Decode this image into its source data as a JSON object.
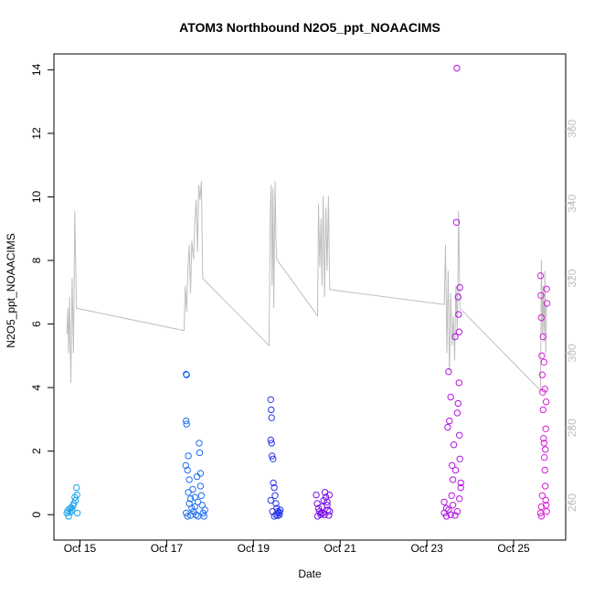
{
  "chart_data": {
    "type": "scatter",
    "title": "ATOM3 Northbound N2O5_ppt_NOAACIMS",
    "xlabel": "Date",
    "ylabel": "N2O5_ppt_NOAACIMS",
    "x_ticks": [
      "Oct 15",
      "Oct 17",
      "Oct 19",
      "Oct 21",
      "Oct 23",
      "Oct 25"
    ],
    "x_tick_days": [
      15,
      17,
      19,
      21,
      23,
      25
    ],
    "xlim": [
      14.4,
      26.2
    ],
    "y_ticks": [
      0,
      2,
      4,
      6,
      8,
      10,
      12,
      14
    ],
    "ylim": [
      -0.8,
      14.5
    ],
    "y2_ticks": [
      260,
      280,
      300,
      320,
      340,
      360
    ],
    "y2lim": [
      250,
      380
    ],
    "series": [
      {
        "color": "#1ca3ec",
        "points": [
          [
            14.7,
            0.05
          ],
          [
            14.72,
            0.12
          ],
          [
            14.74,
            -0.05
          ],
          [
            14.76,
            0.18
          ],
          [
            14.78,
            0.08
          ],
          [
            14.8,
            0.22
          ],
          [
            14.82,
            0.15
          ],
          [
            14.84,
            0.28
          ],
          [
            14.86,
            0.35
          ],
          [
            14.88,
            0.55
          ],
          [
            14.9,
            0.45
          ],
          [
            14.92,
            0.85
          ],
          [
            14.93,
            0.62
          ],
          [
            14.94,
            0.05
          ]
        ]
      },
      {
        "color": "#1f6ff0",
        "points": [
          [
            17.45,
            4.42
          ],
          [
            17.46,
            4.4
          ],
          [
            17.45,
            2.95
          ],
          [
            17.46,
            2.85
          ],
          [
            17.44,
            1.55
          ],
          [
            17.48,
            1.4
          ],
          [
            17.5,
            1.85
          ],
          [
            17.52,
            1.1
          ],
          [
            17.5,
            0.7
          ],
          [
            17.52,
            0.35
          ],
          [
            17.55,
            0.5
          ],
          [
            17.58,
            0.2
          ],
          [
            17.6,
            0.8
          ],
          [
            17.62,
            0.1
          ],
          [
            17.65,
            0.55
          ],
          [
            17.68,
            0.0
          ],
          [
            17.7,
            1.2
          ],
          [
            17.72,
            0.4
          ],
          [
            17.75,
            2.25
          ],
          [
            17.76,
            1.95
          ],
          [
            17.78,
            1.3
          ],
          [
            17.78,
            0.9
          ],
          [
            17.8,
            0.6
          ],
          [
            17.82,
            0.3
          ],
          [
            17.84,
            0.05
          ],
          [
            17.86,
            -0.05
          ],
          [
            17.88,
            0.15
          ],
          [
            17.45,
            0.05
          ],
          [
            17.48,
            -0.05
          ],
          [
            17.55,
            -0.02
          ],
          [
            17.65,
            0.25
          ],
          [
            17.72,
            -0.05
          ]
        ]
      },
      {
        "color": "#2a38e8",
        "points": [
          [
            19.4,
            3.62
          ],
          [
            19.41,
            3.3
          ],
          [
            19.42,
            3.05
          ],
          [
            19.4,
            2.35
          ],
          [
            19.42,
            2.25
          ],
          [
            19.43,
            1.85
          ],
          [
            19.45,
            1.75
          ],
          [
            19.46,
            1.0
          ],
          [
            19.48,
            0.85
          ],
          [
            19.5,
            0.6
          ],
          [
            19.52,
            0.35
          ],
          [
            19.54,
            0.2
          ],
          [
            19.56,
            0.1
          ],
          [
            19.58,
            0.05
          ],
          [
            19.6,
            0.0
          ],
          [
            19.62,
            0.15
          ],
          [
            19.4,
            0.45
          ],
          [
            19.44,
            0.1
          ],
          [
            19.48,
            -0.05
          ],
          [
            19.52,
            0.0
          ],
          [
            19.56,
            -0.03
          ],
          [
            19.6,
            0.08
          ]
        ]
      },
      {
        "color": "#7a10e8",
        "points": [
          [
            20.45,
            0.62
          ],
          [
            20.47,
            0.35
          ],
          [
            20.5,
            0.2
          ],
          [
            20.52,
            0.1
          ],
          [
            20.55,
            0.0
          ],
          [
            20.58,
            0.25
          ],
          [
            20.6,
            0.05
          ],
          [
            20.62,
            0.45
          ],
          [
            20.65,
            0.7
          ],
          [
            20.67,
            0.55
          ],
          [
            20.7,
            0.3
          ],
          [
            20.72,
            0.15
          ],
          [
            20.74,
            -0.02
          ],
          [
            20.76,
            0.1
          ],
          [
            20.48,
            -0.05
          ],
          [
            20.56,
            0.05
          ],
          [
            20.64,
            0.0
          ],
          [
            20.7,
            0.4
          ],
          [
            20.75,
            0.62
          ]
        ]
      },
      {
        "color": "#b314e0",
        "points": [
          [
            23.4,
            0.4
          ],
          [
            23.45,
            0.2
          ],
          [
            23.48,
            2.75
          ],
          [
            23.5,
            4.5
          ],
          [
            23.52,
            2.95
          ],
          [
            23.55,
            3.7
          ],
          [
            23.57,
            0.6
          ],
          [
            23.58,
            1.55
          ],
          [
            23.6,
            1.1
          ],
          [
            23.62,
            2.2
          ],
          [
            23.65,
            5.6
          ],
          [
            23.66,
            1.4
          ],
          [
            23.68,
            9.2
          ],
          [
            23.69,
            14.05
          ],
          [
            23.7,
            3.2
          ],
          [
            23.72,
            6.85
          ],
          [
            23.73,
            6.3
          ],
          [
            23.74,
            5.75
          ],
          [
            23.75,
            2.5
          ],
          [
            23.76,
            1.75
          ],
          [
            23.78,
            0.85
          ],
          [
            23.4,
            0.05
          ],
          [
            23.45,
            -0.05
          ],
          [
            23.5,
            0.15
          ],
          [
            23.55,
            0.0
          ],
          [
            23.6,
            0.3
          ],
          [
            23.65,
            -0.02
          ],
          [
            23.7,
            0.1
          ],
          [
            23.75,
            0.5
          ],
          [
            23.76,
            7.15
          ],
          [
            23.74,
            4.15
          ],
          [
            23.72,
            3.5
          ],
          [
            23.78,
            1.0
          ]
        ]
      },
      {
        "color": "#d61ed6",
        "points": [
          [
            25.62,
            7.52
          ],
          [
            25.63,
            6.9
          ],
          [
            25.64,
            6.2
          ],
          [
            25.65,
            5.0
          ],
          [
            25.66,
            4.4
          ],
          [
            25.67,
            3.85
          ],
          [
            25.68,
            3.3
          ],
          [
            25.69,
            2.4
          ],
          [
            25.7,
            2.25
          ],
          [
            25.71,
            1.8
          ],
          [
            25.72,
            1.4
          ],
          [
            25.73,
            0.9
          ],
          [
            25.74,
            0.45
          ],
          [
            25.75,
            0.3
          ],
          [
            25.76,
            0.1
          ],
          [
            25.62,
            0.05
          ],
          [
            25.64,
            0.25
          ],
          [
            25.66,
            0.6
          ],
          [
            25.68,
            5.6
          ],
          [
            25.7,
            4.8
          ],
          [
            25.72,
            3.95
          ],
          [
            25.74,
            2.7
          ],
          [
            25.76,
            7.1
          ],
          [
            25.77,
            6.65
          ],
          [
            25.75,
            3.55
          ],
          [
            25.73,
            2.05
          ],
          [
            25.64,
            -0.05
          ]
        ]
      }
    ],
    "line_series": {
      "color": "#bebebe",
      "axis": "right",
      "points": [
        [
          14.7,
          305
        ],
        [
          14.72,
          312
        ],
        [
          14.74,
          300
        ],
        [
          14.76,
          315
        ],
        [
          14.79,
          292
        ],
        [
          14.82,
          320
        ],
        [
          14.85,
          300
        ],
        [
          14.88,
          338
        ],
        [
          14.92,
          312
        ],
        [
          17.4,
          306
        ],
        [
          17.43,
          318
        ],
        [
          17.46,
          311
        ],
        [
          17.49,
          322
        ],
        [
          17.52,
          329
        ],
        [
          17.55,
          316
        ],
        [
          17.58,
          330
        ],
        [
          17.62,
          325
        ],
        [
          17.65,
          335
        ],
        [
          17.68,
          341
        ],
        [
          17.71,
          327
        ],
        [
          17.74,
          345
        ],
        [
          17.77,
          341
        ],
        [
          17.8,
          346
        ],
        [
          17.83,
          320
        ],
        [
          19.36,
          302
        ],
        [
          19.39,
          338
        ],
        [
          19.41,
          345
        ],
        [
          19.43,
          318
        ],
        [
          19.45,
          344
        ],
        [
          19.47,
          312
        ],
        [
          19.5,
          346
        ],
        [
          19.52,
          330
        ],
        [
          19.54,
          325
        ],
        [
          20.48,
          310
        ],
        [
          20.5,
          340
        ],
        [
          20.53,
          323
        ],
        [
          20.56,
          336
        ],
        [
          20.58,
          318
        ],
        [
          20.61,
          342
        ],
        [
          20.64,
          315
        ],
        [
          20.67,
          339
        ],
        [
          20.7,
          322
        ],
        [
          20.73,
          342
        ],
        [
          20.76,
          317
        ],
        [
          23.4,
          313
        ],
        [
          23.43,
          329
        ],
        [
          23.46,
          300
        ],
        [
          23.49,
          322
        ],
        [
          23.52,
          295
        ],
        [
          23.55,
          316
        ],
        [
          23.58,
          302
        ],
        [
          23.61,
          310
        ],
        [
          23.64,
          298
        ],
        [
          23.67,
          318
        ],
        [
          23.7,
          306
        ],
        [
          23.73,
          338
        ],
        [
          23.76,
          312
        ],
        [
          25.62,
          290
        ],
        [
          25.64,
          325
        ],
        [
          25.66,
          305
        ],
        [
          25.68,
          318
        ],
        [
          25.7,
          303
        ],
        [
          25.72,
          322
        ],
        [
          25.74,
          300
        ],
        [
          25.76,
          313
        ]
      ]
    }
  }
}
